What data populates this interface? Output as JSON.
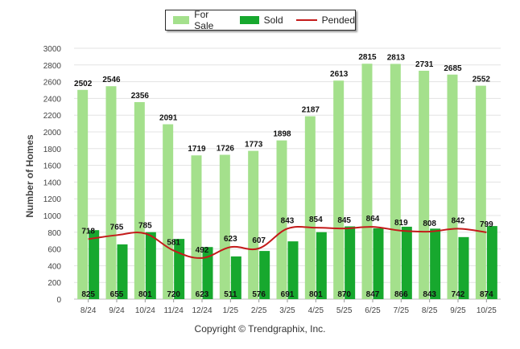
{
  "legend": {
    "for_sale": "For Sale",
    "sold": "Sold",
    "pended": "Pended"
  },
  "footer": "Copyright © Trendgraphix, Inc.",
  "colors": {
    "for_sale": "#a4e08c",
    "sold": "#17a82e",
    "pended": "#c41a1a",
    "grid": "#e3e3e3"
  },
  "chart_data": {
    "type": "bar",
    "title": "",
    "xlabel": "",
    "ylabel": "Number of Homes",
    "ylim": [
      0,
      3000
    ],
    "yticks": [
      0,
      200,
      400,
      600,
      800,
      1000,
      1200,
      1400,
      1600,
      1800,
      2000,
      2200,
      2400,
      2600,
      2800,
      3000
    ],
    "categories": [
      "8/24",
      "9/24",
      "10/24",
      "11/24",
      "12/24",
      "1/25",
      "2/25",
      "3/25",
      "4/25",
      "5/25",
      "6/25",
      "7/25",
      "8/25",
      "9/25",
      "10/25"
    ],
    "series": [
      {
        "name": "For Sale",
        "type": "bar",
        "values": [
          2502,
          2546,
          2356,
          2091,
          1719,
          1726,
          1773,
          1898,
          2187,
          2613,
          2815,
          2813,
          2731,
          2685,
          2552
        ]
      },
      {
        "name": "Sold",
        "type": "bar",
        "values": [
          825,
          655,
          801,
          720,
          623,
          511,
          576,
          691,
          801,
          870,
          847,
          866,
          843,
          742,
          874
        ]
      },
      {
        "name": "Pended",
        "type": "line",
        "values": [
          718,
          765,
          785,
          581,
          492,
          623,
          607,
          843,
          854,
          845,
          864,
          819,
          808,
          842,
          799
        ]
      }
    ]
  }
}
